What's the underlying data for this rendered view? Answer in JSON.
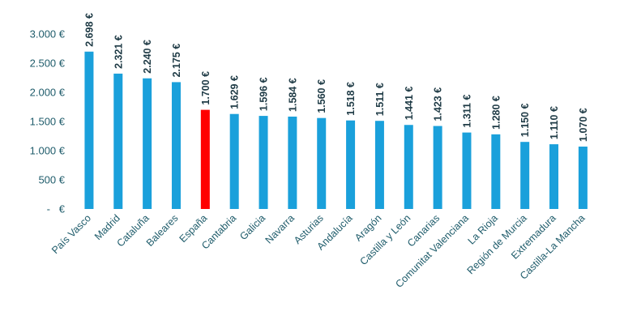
{
  "chart_data": {
    "type": "bar",
    "title": "",
    "xlabel": "",
    "ylabel": "",
    "ylim": [
      0,
      3000
    ],
    "yticks": [
      {
        "value": 0,
        "label": "-   €"
      },
      {
        "value": 500,
        "label": "500 €"
      },
      {
        "value": 1000,
        "label": "1.000 €"
      },
      {
        "value": 1500,
        "label": "1.500 €"
      },
      {
        "value": 2000,
        "label": "2.000 €"
      },
      {
        "value": 2500,
        "label": "2.500 €"
      },
      {
        "value": 3000,
        "label": "3.000 €"
      }
    ],
    "grid": false,
    "legend": "none",
    "bar_color": "#1aa0db",
    "highlight_color": "#ff0000",
    "highlight_category": "España",
    "categories": [
      "País Vasco",
      "Madrid",
      "Cataluña",
      "Baleares",
      "España",
      "Cantabria",
      "Galicia",
      "Navarra",
      "Asturias",
      "Andalucía",
      "Aragón",
      "Castilla y León",
      "Canarias",
      "Comunitat Valenciana",
      "La Rioja",
      "Región de Murcia",
      "Extremadura",
      "Castilla-La Mancha"
    ],
    "values": [
      2698,
      2321,
      2240,
      2175,
      1700,
      1629,
      1596,
      1584,
      1560,
      1518,
      1511,
      1441,
      1423,
      1311,
      1280,
      1150,
      1110,
      1070
    ],
    "value_labels": [
      "2.698 €",
      "2.321 €",
      "2.240 €",
      "2.175 €",
      "1.700 €",
      "1.629 €",
      "1.596 €",
      "1.584 €",
      "1.560 €",
      "1.518 €",
      "1.511 €",
      "1.441 €",
      "1.423 €",
      "1.311 €",
      "1.280 €",
      "1.150 €",
      "1.110 €",
      "1.070 €"
    ]
  }
}
